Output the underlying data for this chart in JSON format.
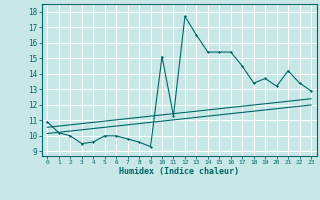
{
  "xlabel": "Humidex (Indice chaleur)",
  "bg_color": "#c8e8e8",
  "grid_color": "#ffffff",
  "line_color": "#006666",
  "x_ticks": [
    0,
    1,
    2,
    3,
    4,
    5,
    6,
    7,
    8,
    9,
    10,
    11,
    12,
    13,
    14,
    15,
    16,
    17,
    18,
    19,
    20,
    21,
    22,
    23
  ],
  "y_ticks": [
    9,
    10,
    11,
    12,
    13,
    14,
    15,
    16,
    17,
    18
  ],
  "ylim": [
    8.7,
    18.5
  ],
  "xlim": [
    -0.5,
    23.5
  ],
  "series1_y": [
    10.9,
    10.2,
    10.0,
    9.5,
    9.6,
    10.0,
    10.0,
    9.8,
    9.6,
    9.3,
    15.1,
    11.3,
    17.7,
    16.5,
    15.4,
    15.4,
    15.4,
    14.5,
    13.4,
    13.7,
    13.2,
    14.2,
    13.4,
    12.9
  ],
  "series2_y": [
    10.55,
    10.63,
    10.71,
    10.79,
    10.87,
    10.95,
    11.03,
    11.11,
    11.19,
    11.27,
    11.35,
    11.43,
    11.51,
    11.59,
    11.67,
    11.75,
    11.83,
    11.91,
    11.99,
    12.07,
    12.15,
    12.23,
    12.31,
    12.39
  ],
  "series3_y": [
    10.15,
    10.23,
    10.31,
    10.39,
    10.47,
    10.55,
    10.63,
    10.71,
    10.79,
    10.87,
    10.95,
    11.03,
    11.11,
    11.19,
    11.27,
    11.35,
    11.43,
    11.51,
    11.59,
    11.67,
    11.75,
    11.83,
    11.91,
    11.99
  ]
}
